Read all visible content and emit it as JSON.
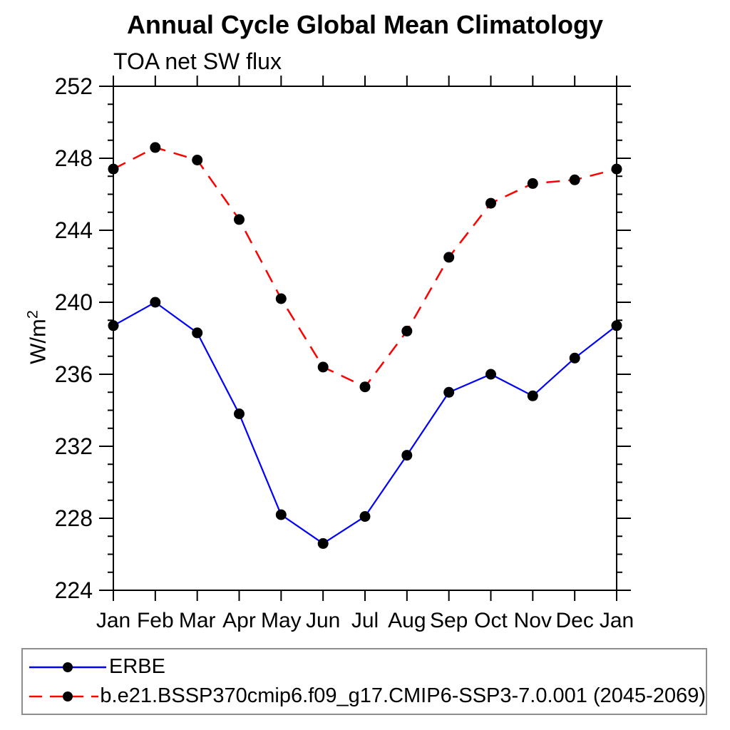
{
  "chart_data": {
    "type": "line",
    "title": "Annual Cycle Global Mean Climatology",
    "subtitle": "TOA net SW flux",
    "ylabel": "W/m²",
    "ylabel_parts": {
      "base": "W/m",
      "exp": "2"
    },
    "xlabel": "",
    "categories": [
      "Jan",
      "Feb",
      "Mar",
      "Apr",
      "May",
      "Jun",
      "Jul",
      "Aug",
      "Sep",
      "Oct",
      "Nov",
      "Dec",
      "Jan"
    ],
    "ylim": [
      224,
      252
    ],
    "y_major_step": 4,
    "y_minor_step": 1,
    "grid": false,
    "legend_position": "bottom-left",
    "axis_color": "#000000",
    "series": [
      {
        "name": "ERBE",
        "color": "#0000ff",
        "line_style": "solid",
        "marker": "filled-circle",
        "marker_color": "#000000",
        "values": [
          238.7,
          240.0,
          238.3,
          233.8,
          228.2,
          226.6,
          228.1,
          231.5,
          235.0,
          236.0,
          234.8,
          236.9,
          238.7
        ]
      },
      {
        "name": "b.e21.BSSP370cmip6.f09_g17.CMIP6-SSP3-7.0.001 (2045-2069)",
        "color": "#ff0000",
        "line_style": "dashed",
        "marker": "filled-circle",
        "marker_color": "#000000",
        "values": [
          247.4,
          248.6,
          247.9,
          244.6,
          240.2,
          236.4,
          235.3,
          238.4,
          242.5,
          245.5,
          246.6,
          246.8,
          247.4
        ]
      }
    ]
  }
}
